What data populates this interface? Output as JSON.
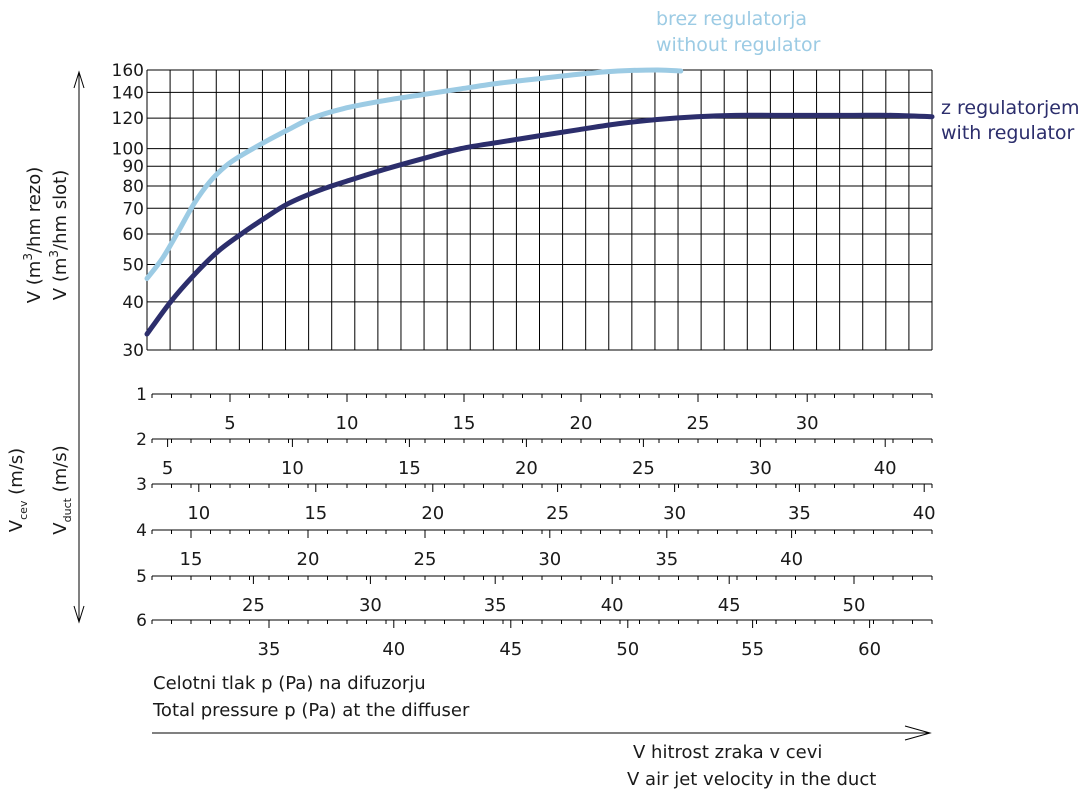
{
  "chart_data": {
    "type": "line",
    "x_axis_label_lines": [
      "V hitrost zraka v cevi",
      "V air jet velocity in the duct"
    ],
    "pressure_label_lines": [
      "Celotni tlak p (Pa) na difuzorju",
      "Total pressure p (Pa) at the diffuser"
    ],
    "y_label_lines": [
      "V (m³/hm rezo)",
      "V (m³/hm slot)"
    ],
    "v_label_lines": [
      "V_cev (m/s)",
      "V_duct (m/s)"
    ],
    "y_scale": "log",
    "y_ticks": [
      30,
      40,
      50,
      60,
      70,
      80,
      90,
      100,
      120,
      140,
      160
    ],
    "ylim": [
      30,
      160
    ],
    "x_velocity_range": [
      0,
      100
    ],
    "grid": true,
    "series": [
      {
        "name_lines": [
          "brez regulatorja",
          "without regulator"
        ],
        "color": "#9ccbe4",
        "points": [
          [
            0,
            46
          ],
          [
            2,
            52
          ],
          [
            4,
            61
          ],
          [
            6,
            72
          ],
          [
            8,
            82
          ],
          [
            10,
            90
          ],
          [
            12,
            96
          ],
          [
            15,
            104
          ],
          [
            18,
            112
          ],
          [
            21,
            120
          ],
          [
            25,
            127
          ],
          [
            30,
            133
          ],
          [
            35,
            138
          ],
          [
            40,
            143
          ],
          [
            45,
            148
          ],
          [
            50,
            152
          ],
          [
            55,
            156
          ],
          [
            60,
            159
          ],
          [
            65,
            160
          ],
          [
            68,
            159
          ]
        ]
      },
      {
        "name_lines": [
          "z regulatorjem",
          "with regulator"
        ],
        "color": "#2c2e6c",
        "points": [
          [
            0,
            33
          ],
          [
            3,
            40
          ],
          [
            6,
            47
          ],
          [
            9,
            54
          ],
          [
            12,
            60
          ],
          [
            15,
            66
          ],
          [
            18,
            72
          ],
          [
            22,
            78
          ],
          [
            26,
            83
          ],
          [
            30,
            88
          ],
          [
            35,
            94
          ],
          [
            40,
            100
          ],
          [
            45,
            104
          ],
          [
            50,
            108
          ],
          [
            55,
            112
          ],
          [
            60,
            116
          ],
          [
            65,
            119
          ],
          [
            70,
            121
          ],
          [
            75,
            122
          ],
          [
            80,
            122
          ],
          [
            85,
            122
          ],
          [
            90,
            122
          ],
          [
            95,
            122
          ],
          [
            100,
            121
          ]
        ]
      }
    ],
    "pressure_scales": [
      {
        "label": "1",
        "ticks": [
          {
            "v": "5",
            "pos": 10
          },
          {
            "v": "10",
            "pos": 25
          },
          {
            "v": "15",
            "pos": 40
          },
          {
            "v": "20",
            "pos": 55
          },
          {
            "v": "25",
            "pos": 70
          },
          {
            "v": "30",
            "pos": 84
          }
        ]
      },
      {
        "label": "2",
        "ticks": [
          {
            "v": "5",
            "pos": 2
          },
          {
            "v": "10",
            "pos": 18
          },
          {
            "v": "15",
            "pos": 33
          },
          {
            "v": "20",
            "pos": 48
          },
          {
            "v": "25",
            "pos": 63
          },
          {
            "v": "30",
            "pos": 78
          },
          {
            "v": "40",
            "pos": 94
          }
        ]
      },
      {
        "label": "3",
        "ticks": [
          {
            "v": "10",
            "pos": 6
          },
          {
            "v": "15",
            "pos": 21
          },
          {
            "v": "20",
            "pos": 36
          },
          {
            "v": "25",
            "pos": 52
          },
          {
            "v": "30",
            "pos": 67
          },
          {
            "v": "35",
            "pos": 83
          },
          {
            "v": "40",
            "pos": 99
          }
        ]
      },
      {
        "label": "4",
        "ticks": [
          {
            "v": "15",
            "pos": 5
          },
          {
            "v": "20",
            "pos": 20
          },
          {
            "v": "25",
            "pos": 35
          },
          {
            "v": "30",
            "pos": 51
          },
          {
            "v": "35",
            "pos": 66
          },
          {
            "v": "40",
            "pos": 82
          }
        ]
      },
      {
        "label": "5",
        "ticks": [
          {
            "v": "25",
            "pos": 13
          },
          {
            "v": "30",
            "pos": 28
          },
          {
            "v": "35",
            "pos": 44
          },
          {
            "v": "40",
            "pos": 59
          },
          {
            "v": "45",
            "pos": 74
          },
          {
            "v": "50",
            "pos": 90
          }
        ]
      },
      {
        "label": "6",
        "ticks": [
          {
            "v": "35",
            "pos": 15
          },
          {
            "v": "40",
            "pos": 31
          },
          {
            "v": "45",
            "pos": 46
          },
          {
            "v": "50",
            "pos": 61
          },
          {
            "v": "55",
            "pos": 77
          },
          {
            "v": "60",
            "pos": 92
          }
        ]
      }
    ]
  }
}
